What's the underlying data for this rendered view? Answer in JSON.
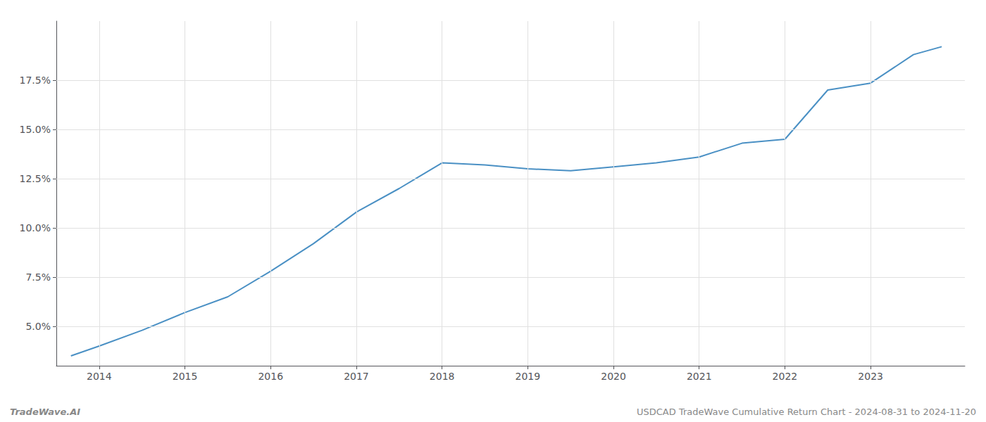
{
  "chart_data": {
    "type": "line",
    "x": [
      2013.67,
      2014.0,
      2014.5,
      2015.0,
      2015.5,
      2016.0,
      2016.5,
      2017.0,
      2017.5,
      2018.0,
      2018.5,
      2019.0,
      2019.5,
      2020.0,
      2020.5,
      2021.0,
      2021.5,
      2022.0,
      2022.5,
      2023.0,
      2023.5,
      2023.83
    ],
    "values": [
      3.5,
      4.0,
      4.8,
      5.7,
      6.5,
      7.8,
      9.2,
      10.8,
      12.0,
      13.3,
      13.2,
      13.0,
      12.9,
      13.1,
      13.3,
      13.6,
      14.3,
      14.5,
      17.0,
      17.35,
      18.8,
      19.2
    ],
    "color": "#4a90c4",
    "xlim": [
      2013.5,
      2024.1
    ],
    "xticks": [
      2014,
      2015,
      2016,
      2017,
      2018,
      2019,
      2020,
      2021,
      2022,
      2023
    ],
    "ylim": [
      3.0,
      20.5
    ],
    "yticks": [
      {
        "value": 5.0,
        "label": "5.0%"
      },
      {
        "value": 7.5,
        "label": "7.5%"
      },
      {
        "value": 10.0,
        "label": "10.0%"
      },
      {
        "value": 12.5,
        "label": "12.5%"
      },
      {
        "value": 15.0,
        "label": "15.0%"
      },
      {
        "value": 17.5,
        "label": "17.5%"
      }
    ],
    "grid": true,
    "annotations": [
      "TradeWave.AI",
      "USDCAD TradeWave Cumulative Return Chart - 2024-08-31 to 2024-11-20"
    ]
  }
}
